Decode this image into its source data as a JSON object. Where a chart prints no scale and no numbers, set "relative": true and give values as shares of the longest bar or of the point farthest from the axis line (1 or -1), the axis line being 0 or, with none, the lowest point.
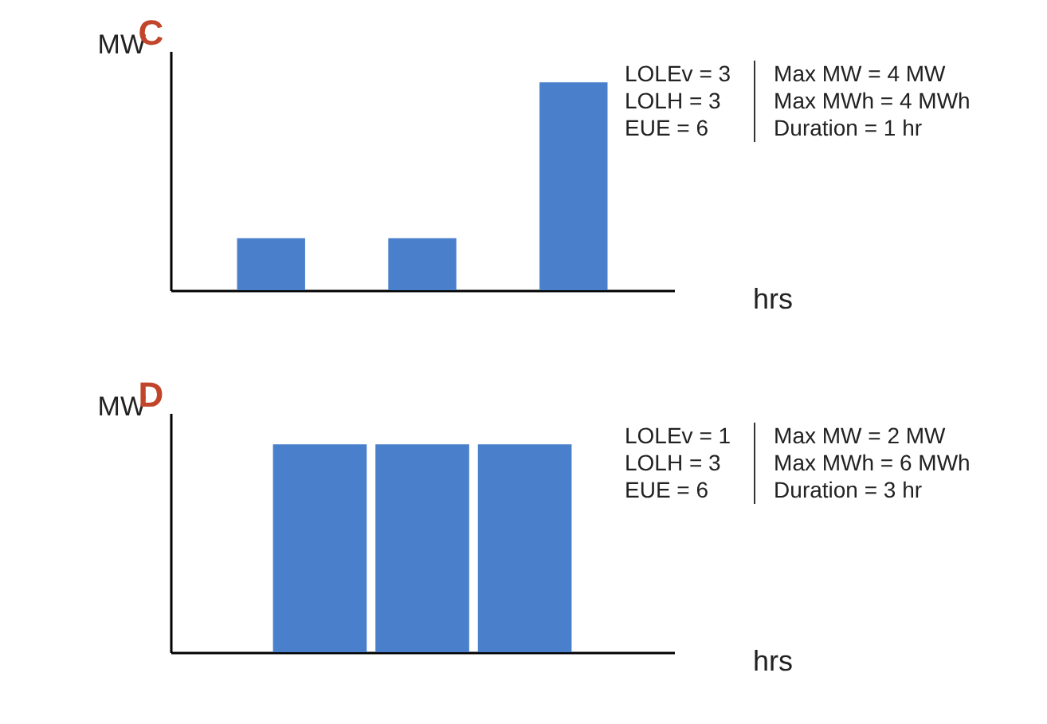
{
  "chart_data": [
    {
      "type": "bar",
      "title": "C",
      "ylabel": "MW",
      "xlabel": "hrs",
      "relative": true,
      "categories": [
        null,
        null,
        null
      ],
      "values": [
        0.25,
        0.25,
        1
      ],
      "color": "#4a7fcc",
      "grid": false,
      "annotations": [
        "LOLEv = 3",
        "LOLH = 3",
        "EUE = 6",
        "Max MW = 4 MW",
        "Max MWh = 4 MWh",
        "Duration = 1 hr"
      ]
    },
    {
      "type": "bar",
      "title": "D",
      "ylabel": "MW",
      "xlabel": "hrs",
      "relative": true,
      "categories": [
        null,
        null,
        null
      ],
      "values": [
        1,
        1,
        1
      ],
      "color": "#4a7fcc",
      "grid": false,
      "annotations": [
        "LOLEv = 1",
        "LOLH = 3",
        "EUE = 6",
        "Max MW = 2 MW",
        "Max MWh = 6 MWh",
        "Duration = 3 hr"
      ]
    }
  ]
}
